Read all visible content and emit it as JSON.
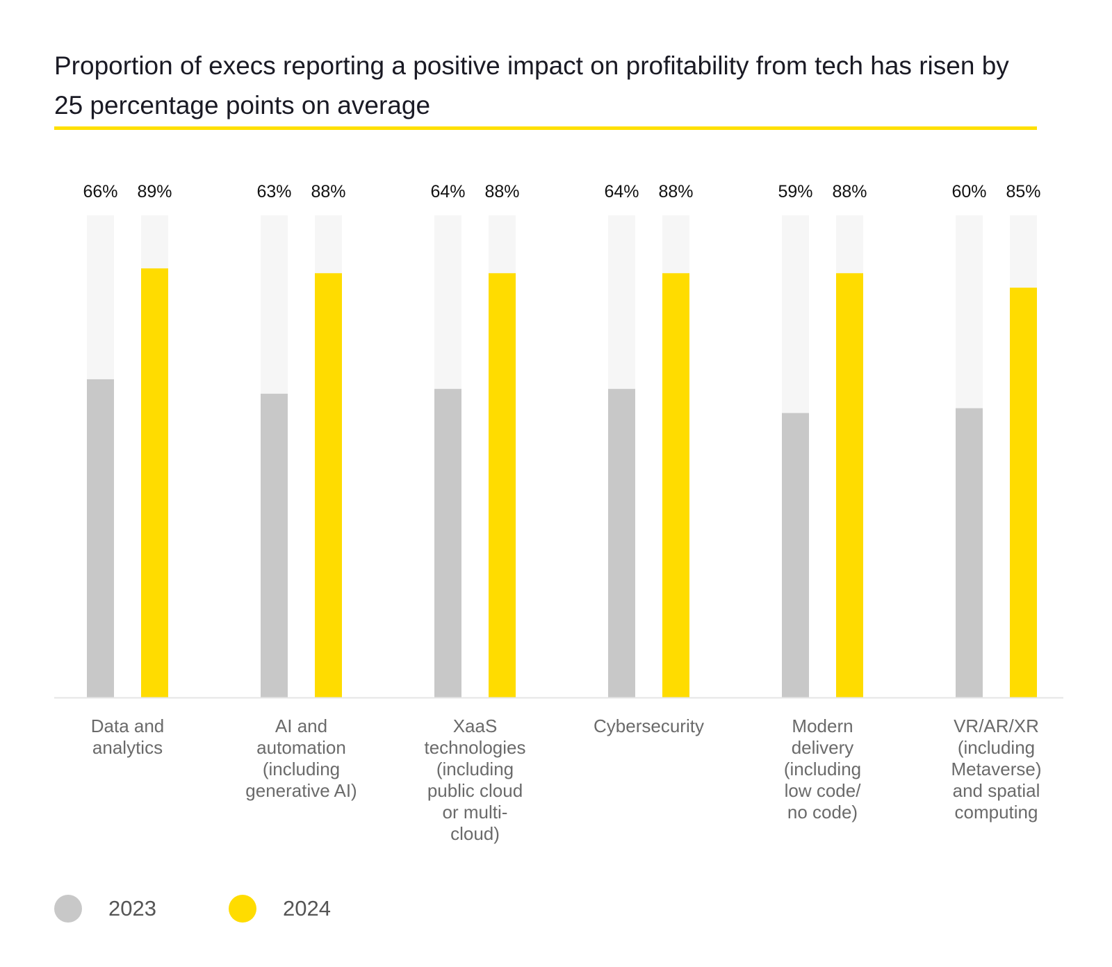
{
  "colors": {
    "series_2023": "#c8c8c8",
    "series_2024": "#ffdc00",
    "track": "#f6f6f6",
    "accent_rule": "#ffe000",
    "baseline": "#e6e6e6",
    "value_text": "#111111",
    "category_text": "#6a6a6a"
  },
  "chart_data": {
    "type": "bar",
    "title": "Proportion of execs reporting a positive impact on profitability from tech has risen by 25 percentage points on average",
    "categories": [
      [
        "Data and",
        "analytics"
      ],
      [
        "AI and",
        "automation",
        "(including",
        "generative AI)"
      ],
      [
        "XaaS",
        "technologies",
        "(including",
        "public cloud",
        "or multi-",
        "cloud)"
      ],
      [
        "Cybersecurity"
      ],
      [
        "Modern",
        "delivery",
        "(including",
        "low code/",
        "no code)"
      ],
      [
        "VR/AR/XR",
        "(including",
        "Metaverse)",
        "and spatial",
        "computing"
      ]
    ],
    "series": [
      {
        "name": "2023",
        "values": [
          66,
          63,
          64,
          64,
          59,
          60
        ],
        "labels": [
          "66%",
          "63%",
          "64%",
          "64%",
          "59%",
          "60%"
        ]
      },
      {
        "name": "2024",
        "values": [
          89,
          88,
          88,
          88,
          88,
          85
        ],
        "labels": [
          "89%",
          "88%",
          "88%",
          "88%",
          "88%",
          "85%"
        ]
      }
    ],
    "ylim": [
      0,
      100
    ],
    "grid": false,
    "legend_position": "bottom-left"
  }
}
